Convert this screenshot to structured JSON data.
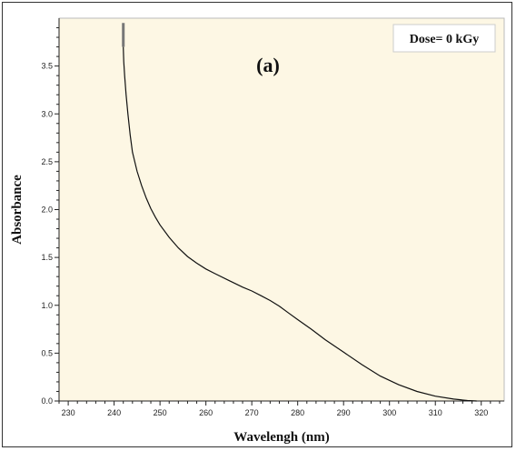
{
  "chart_data": {
    "type": "line",
    "title": "(a)",
    "annotation": "Dose= 0 kGy",
    "xlabel": "Wavelengh (nm)",
    "ylabel": "Absorbance",
    "xlim": [
      228,
      325
    ],
    "ylim": [
      0,
      4.0
    ],
    "x_ticks": [
      230,
      240,
      250,
      260,
      270,
      280,
      290,
      300,
      310,
      320
    ],
    "y_ticks": [
      0.0,
      0.5,
      1.0,
      1.5,
      2.0,
      2.5,
      3.0,
      3.5
    ],
    "x_tick_labels": [
      "230",
      "240",
      "250",
      "260",
      "270",
      "280",
      "290",
      "300",
      "310",
      "320"
    ],
    "y_tick_labels": [
      "0.0",
      "0.5",
      "1.0",
      "1.5",
      "2.0",
      "2.5",
      "3.0",
      "3.5"
    ],
    "grid": false,
    "plot_background": "#fdf7e4",
    "line_color": "#111111",
    "series": [
      {
        "name": "",
        "x": [
          242.0,
          242.1,
          242.3,
          242.6,
          243.0,
          243.5,
          244.0,
          245.0,
          246.0,
          247.0,
          248.0,
          249.0,
          250.0,
          252.0,
          254.0,
          256.0,
          258.0,
          260.0,
          262.0,
          265.0,
          268.0,
          270.0,
          272.0,
          274.0,
          276.0,
          278.0,
          280.0,
          283.0,
          286.0,
          290.0,
          294.0,
          298.0,
          302.0,
          306.0,
          310.0,
          314.0,
          317.0,
          319.0
        ],
        "y": [
          3.7,
          3.55,
          3.4,
          3.2,
          3.0,
          2.78,
          2.6,
          2.4,
          2.25,
          2.12,
          2.01,
          1.92,
          1.84,
          1.71,
          1.6,
          1.51,
          1.44,
          1.38,
          1.33,
          1.26,
          1.19,
          1.15,
          1.1,
          1.05,
          0.99,
          0.92,
          0.85,
          0.75,
          0.64,
          0.51,
          0.38,
          0.26,
          0.17,
          0.1,
          0.05,
          0.02,
          0.005,
          0.0
        ]
      }
    ],
    "bar_marker": {
      "x": 242.0,
      "y_top": 3.95,
      "y_bottom": 3.7
    }
  }
}
